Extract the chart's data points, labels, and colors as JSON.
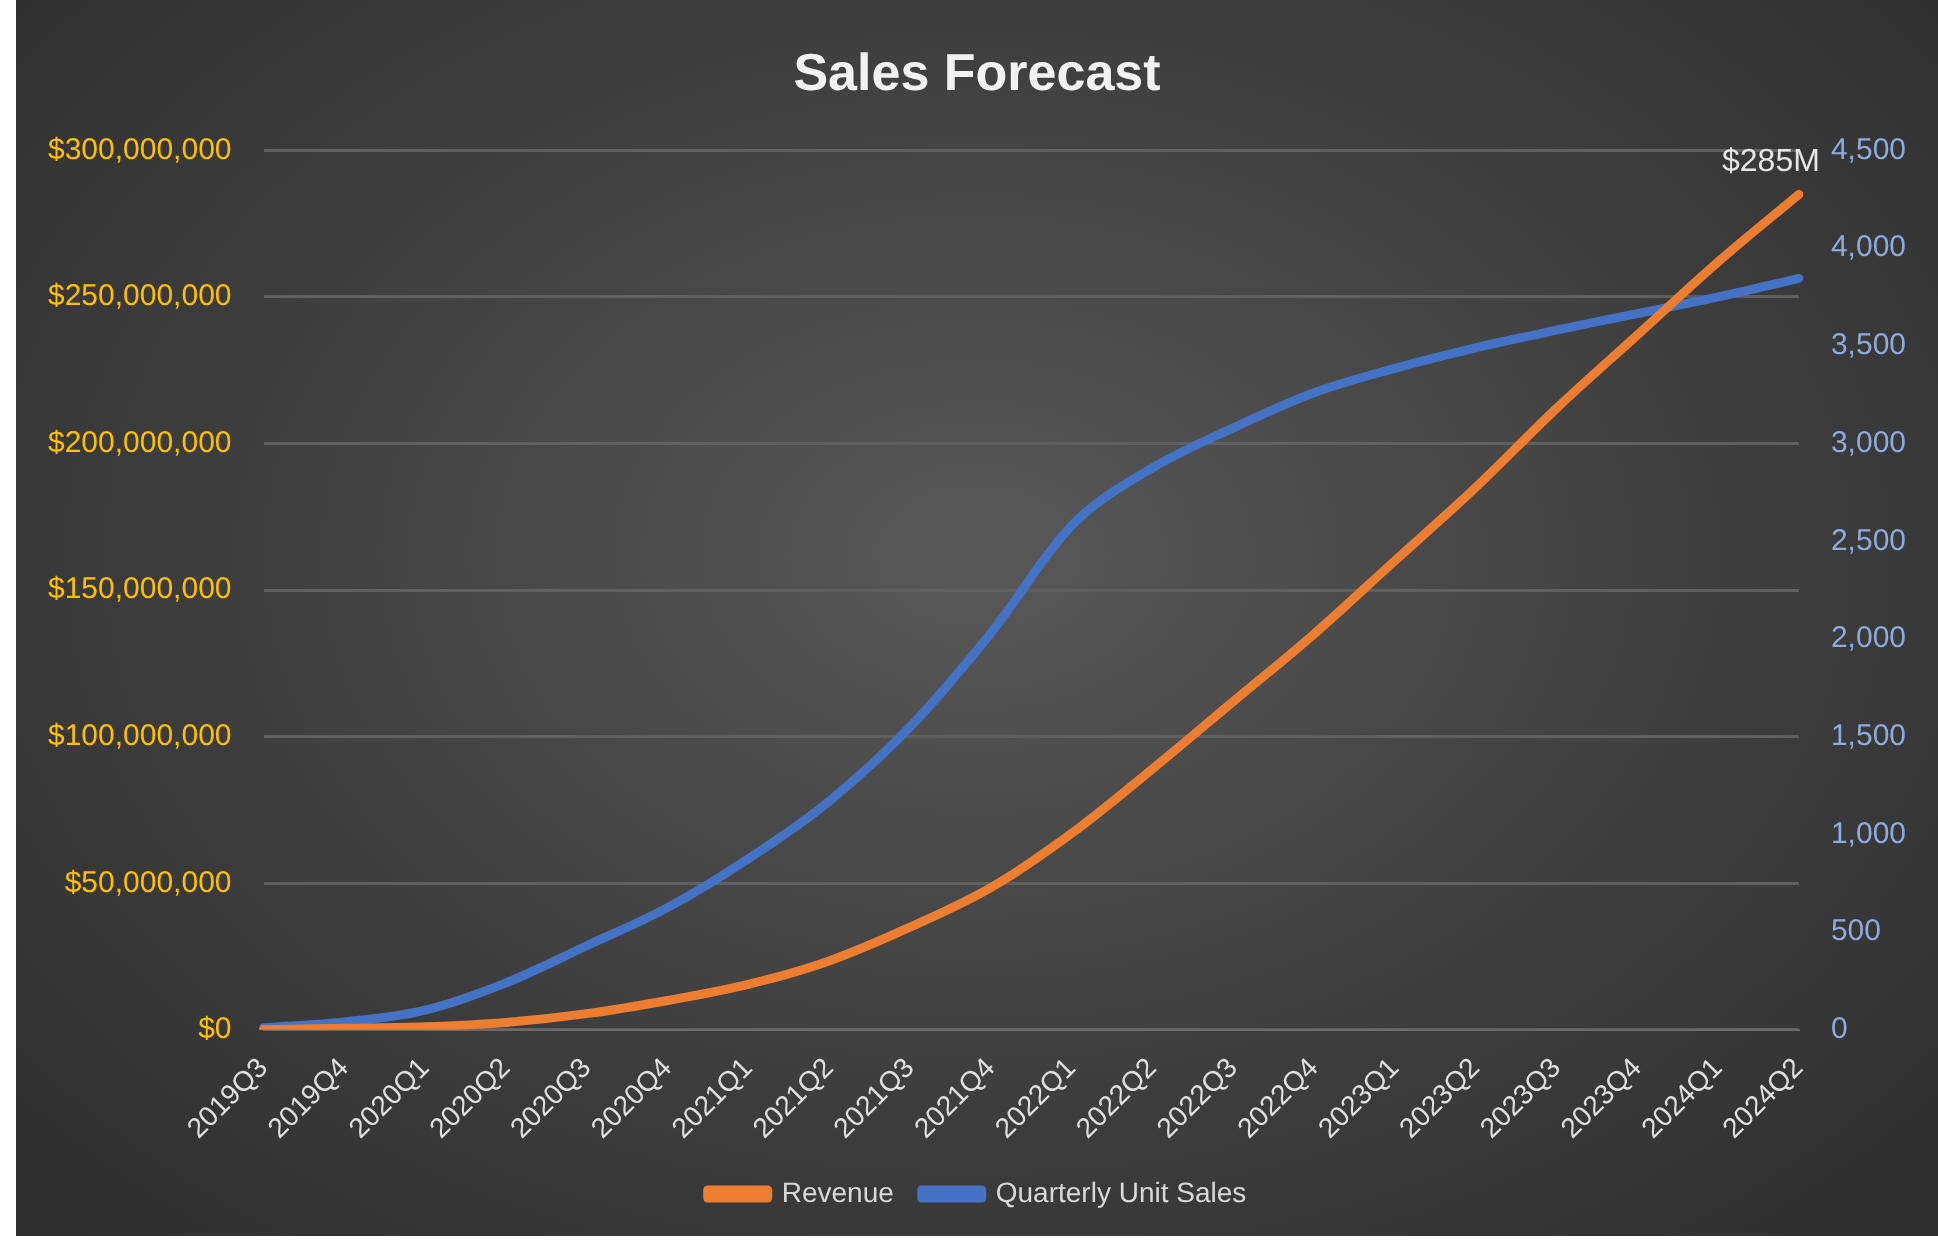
{
  "chart_data": {
    "type": "line",
    "title": "Sales Forecast",
    "categories": [
      "2019Q3",
      "2019Q4",
      "2020Q1",
      "2020Q2",
      "2020Q3",
      "2020Q4",
      "2021Q1",
      "2021Q2",
      "2021Q3",
      "2021Q4",
      "2022Q1",
      "2022Q2",
      "2022Q3",
      "2022Q4",
      "2023Q1",
      "2023Q2",
      "2023Q3",
      "2023Q4",
      "2024Q1",
      "2024Q2"
    ],
    "series": [
      {
        "name": "Revenue",
        "color": "#ed7d31",
        "values": [
          0,
          500000,
          1000000,
          2500000,
          5500000,
          10000000,
          15500000,
          23500000,
          35000000,
          48500000,
          67000000,
          89000000,
          112000000,
          135000000,
          160000000,
          185000000,
          212000000,
          237000000,
          262000000,
          285000000
        ]
      },
      {
        "name": "Quarterly Unit Sales",
        "color": "#4472c4",
        "axis": "y2",
        "values": [
          10,
          40,
          100,
          240,
          430,
          625,
          875,
          1170,
          1550,
          2030,
          2580,
          2875,
          3080,
          3260,
          3385,
          3490,
          3580,
          3665,
          3750,
          3845
        ]
      }
    ],
    "ylim": [
      0,
      300000000
    ],
    "yticks": [
      {
        "value": 0,
        "label": "$0"
      },
      {
        "value": 50000000,
        "label": "$50,000,000"
      },
      {
        "value": 100000000,
        "label": "$100,000,000"
      },
      {
        "value": 150000000,
        "label": "$150,000,000"
      },
      {
        "value": 200000000,
        "label": "$200,000,000"
      },
      {
        "value": 250000000,
        "label": "$250,000,000"
      },
      {
        "value": 300000000,
        "label": "$300,000,000"
      }
    ],
    "y2lim": [
      0,
      4500
    ],
    "y2ticks": [
      0,
      500,
      {
        "value": 1000,
        "label": "1,000"
      },
      {
        "value": 1500,
        "label": "1,500"
      },
      {
        "value": 2000,
        "label": "2,000"
      },
      {
        "value": 2500,
        "label": "2,500"
      },
      {
        "value": 3000,
        "label": "3,000"
      },
      {
        "value": 3500,
        "label": "3,500"
      },
      {
        "value": 4000,
        "label": "4,000"
      },
      {
        "value": 4500,
        "label": "4,500"
      }
    ],
    "annotations": [
      {
        "text": "$285M",
        "x": "2024Q2",
        "y": 285000000
      }
    ],
    "grid": "y",
    "legend": "bottom",
    "marker": "none",
    "line_style": "solid"
  }
}
